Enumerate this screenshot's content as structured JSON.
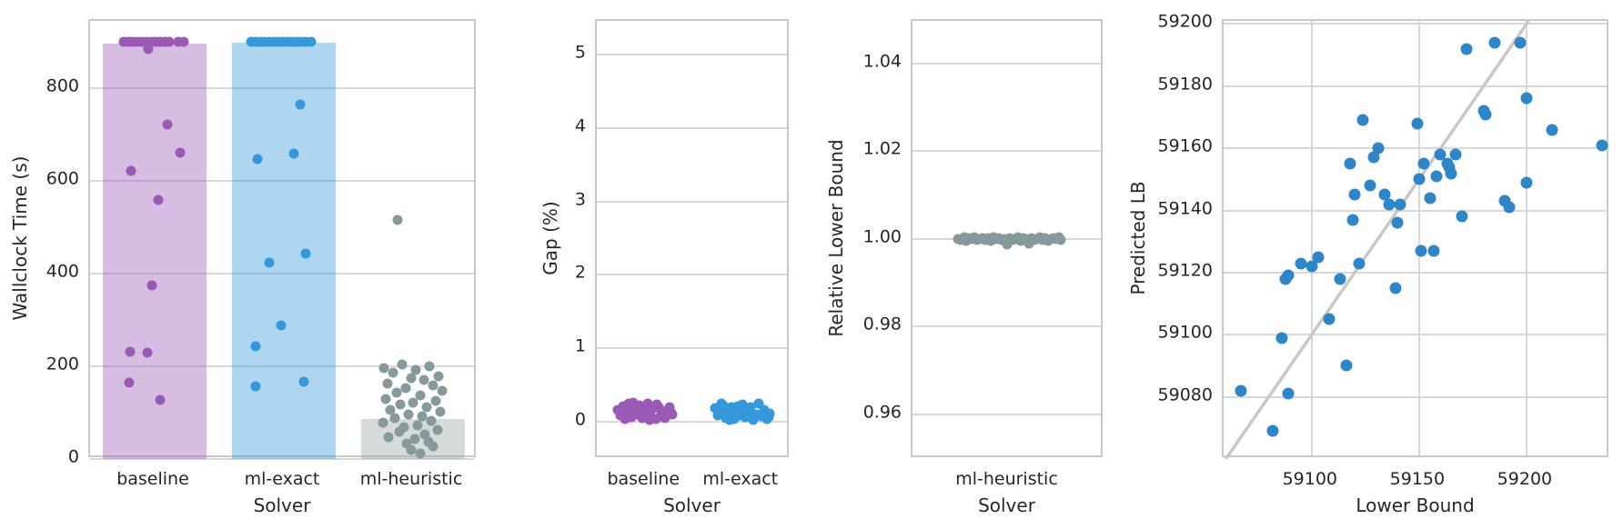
{
  "figure": {
    "background": "#ffffff"
  },
  "chart_data": [
    {
      "type": "strip-bar",
      "xlabel": "Solver",
      "ylabel": "Wallclock Time (s)",
      "categories": [
        "baseline",
        "ml-exact",
        "ml-heuristic"
      ],
      "bar_values": [
        896,
        897,
        86
      ],
      "ylim": [
        0,
        945
      ],
      "ytick_values": [
        0,
        200,
        400,
        600,
        800
      ],
      "ytick_labels": [
        "0",
        "200",
        "400",
        "600",
        "800"
      ],
      "series_colors": [
        "#9b59b6",
        "#3498db",
        "#879a9b"
      ],
      "bar_fills": [
        "rgba(155,89,182,0.40)",
        "rgba(52,152,219,0.40)",
        "rgba(149,165,166,0.40)"
      ],
      "grid": true,
      "points_by_category": [
        [
          [
            -34,
            900
          ],
          [
            -29,
            900
          ],
          [
            -24,
            900
          ],
          [
            -19,
            900
          ],
          [
            -14,
            900
          ],
          [
            -9,
            900
          ],
          [
            -4,
            900
          ],
          [
            1,
            900
          ],
          [
            6,
            900
          ],
          [
            11,
            900
          ],
          [
            16,
            900
          ],
          [
            26,
            900
          ],
          [
            32,
            900
          ],
          [
            -7,
            885
          ],
          [
            14,
            722
          ],
          [
            28,
            660
          ],
          [
            -26,
            622
          ],
          [
            4,
            558
          ],
          [
            -3,
            375
          ],
          [
            -27,
            231
          ],
          [
            -8,
            229
          ],
          [
            -28,
            164
          ],
          [
            6,
            127
          ]
        ],
        [
          [
            -36,
            900
          ],
          [
            -31,
            900
          ],
          [
            -26,
            900
          ],
          [
            -21,
            900
          ],
          [
            -16,
            900
          ],
          [
            -11,
            900
          ],
          [
            -6,
            900
          ],
          [
            -1,
            900
          ],
          [
            4,
            900
          ],
          [
            9,
            900
          ],
          [
            14,
            900
          ],
          [
            19,
            900
          ],
          [
            24,
            900
          ],
          [
            30,
            900
          ],
          [
            18,
            765
          ],
          [
            11,
            658
          ],
          [
            -29,
            647
          ],
          [
            24,
            443
          ],
          [
            -16,
            424
          ],
          [
            -3,
            289
          ],
          [
            -31,
            244
          ],
          [
            22,
            166
          ],
          [
            -31,
            157
          ]
        ],
        [
          [
            -17,
            516
          ],
          [
            -32,
            196
          ],
          [
            -12,
            203
          ],
          [
            3,
            192
          ],
          [
            18,
            199
          ],
          [
            -22,
            186
          ],
          [
            28,
            178
          ],
          [
            -2,
            175
          ],
          [
            12,
            170
          ],
          [
            -28,
            162
          ],
          [
            22,
            158
          ],
          [
            -8,
            152
          ],
          [
            32,
            148
          ],
          [
            -18,
            143
          ],
          [
            8,
            138
          ],
          [
            -30,
            130
          ],
          [
            25,
            126
          ],
          [
            0,
            122
          ],
          [
            -14,
            117
          ],
          [
            15,
            112
          ],
          [
            -25,
            106
          ],
          [
            30,
            101
          ],
          [
            -5,
            97
          ],
          [
            10,
            92
          ],
          [
            -20,
            88
          ],
          [
            20,
            83
          ],
          [
            -33,
            78
          ],
          [
            5,
            73
          ],
          [
            -10,
            68
          ],
          [
            27,
            63
          ],
          [
            -15,
            58
          ],
          [
            13,
            53
          ],
          [
            -27,
            48
          ],
          [
            2,
            43
          ],
          [
            17,
            38
          ],
          [
            -7,
            33
          ],
          [
            22,
            27
          ],
          [
            -2,
            20
          ],
          [
            8,
            12
          ]
        ]
      ]
    },
    {
      "type": "strip",
      "xlabel": "Solver",
      "ylabel": "Gap (%)",
      "categories": [
        "baseline",
        "ml-exact"
      ],
      "ylim": [
        -0.51,
        5.46
      ],
      "ytick_values": [
        0,
        1,
        2,
        3,
        4,
        5
      ],
      "ytick_labels": [
        "0",
        "1",
        "2",
        "3",
        "4",
        "5"
      ],
      "series_colors": [
        "#9b59b6",
        "#3498db"
      ],
      "grid": true,
      "points_by_category": [
        [
          [
            -30,
            0.16
          ],
          [
            -27,
            0.09
          ],
          [
            -24,
            0.21
          ],
          [
            -21,
            0.13
          ],
          [
            -18,
            0.24
          ],
          [
            -15,
            0.06
          ],
          [
            -12,
            0.17
          ],
          [
            -9,
            0.1
          ],
          [
            -6,
            0.22
          ],
          [
            -3,
            0.05
          ],
          [
            0,
            0.14
          ],
          [
            3,
            0.25
          ],
          [
            6,
            0.08
          ],
          [
            9,
            0.18
          ],
          [
            12,
            0.04
          ],
          [
            15,
            0.2
          ],
          [
            18,
            0.11
          ],
          [
            21,
            0.07
          ],
          [
            24,
            0.15
          ],
          [
            27,
            0.19
          ],
          [
            30,
            0.1
          ],
          [
            -22,
            0.03
          ],
          [
            -13,
            0.26
          ],
          [
            -4,
            0.12
          ],
          [
            5,
            0.02
          ],
          [
            13,
            0.23
          ],
          [
            22,
            0.05
          ],
          [
            28,
            0.13
          ]
        ],
        [
          [
            -30,
            0.18
          ],
          [
            -27,
            0.08
          ],
          [
            -24,
            0.14
          ],
          [
            -21,
            0.22
          ],
          [
            -18,
            0.05
          ],
          [
            -15,
            0.12
          ],
          [
            -12,
            0.2
          ],
          [
            -9,
            0.03
          ],
          [
            -6,
            0.16
          ],
          [
            -3,
            0.09
          ],
          [
            0,
            0.23
          ],
          [
            3,
            0.06
          ],
          [
            6,
            0.13
          ],
          [
            9,
            0.19
          ],
          [
            12,
            0.02
          ],
          [
            15,
            0.1
          ],
          [
            18,
            0.24
          ],
          [
            21,
            0.07
          ],
          [
            24,
            0.16
          ],
          [
            27,
            0.04
          ],
          [
            30,
            0.11
          ],
          [
            -23,
            0.25
          ],
          [
            -14,
            0.02
          ],
          [
            -5,
            0.21
          ],
          [
            4,
            0.15
          ],
          [
            14,
            0.08
          ],
          [
            23,
            0.12
          ],
          [
            29,
            0.06
          ]
        ]
      ]
    },
    {
      "type": "strip",
      "xlabel": "Solver",
      "ylabel": "Relative Lower Bound",
      "categories": [
        "ml-heuristic"
      ],
      "ylim": [
        0.9498,
        1.0497
      ],
      "ytick_values": [
        0.96,
        0.98,
        1.0,
        1.02,
        1.04
      ],
      "ytick_labels": [
        "0.96",
        "0.98",
        "1.00",
        "1.02",
        "1.04"
      ],
      "series_colors": [
        "#879a9b"
      ],
      "grid": true,
      "points_by_category": [
        [
          [
            -56,
            1.0
          ],
          [
            -53,
            0.9998
          ],
          [
            -50,
            1.0002
          ],
          [
            -47,
            0.9996
          ],
          [
            -44,
            1.0001
          ],
          [
            -41,
            0.9999
          ],
          [
            -38,
            1.0003
          ],
          [
            -35,
            0.9997
          ],
          [
            -32,
            1.0
          ],
          [
            -29,
            1.0002
          ],
          [
            -26,
            0.9998
          ],
          [
            -23,
            1.0001
          ],
          [
            -20,
            0.9995
          ],
          [
            -17,
            1.0003
          ],
          [
            -14,
            0.9999
          ],
          [
            -11,
            1.0001
          ],
          [
            -8,
            0.9997
          ],
          [
            -5,
            1.0
          ],
          [
            -2,
            0.9987
          ],
          [
            1,
            1.0002
          ],
          [
            4,
            0.9998
          ],
          [
            7,
            1.0
          ],
          [
            10,
            1.0003
          ],
          [
            13,
            0.9996
          ],
          [
            16,
            1.0001
          ],
          [
            19,
            0.9999
          ],
          [
            22,
            0.999
          ],
          [
            25,
            1.0002
          ],
          [
            28,
            0.9997
          ],
          [
            31,
            1.0
          ],
          [
            34,
            1.0003
          ],
          [
            37,
            0.9998
          ],
          [
            40,
            1.0001
          ],
          [
            43,
            0.9995
          ],
          [
            46,
            1.0
          ],
          [
            49,
            1.0002
          ],
          [
            52,
            0.9999
          ],
          [
            55,
            1.0003
          ],
          [
            57,
            0.9997
          ],
          [
            -49,
            1.0004
          ]
        ]
      ]
    },
    {
      "type": "scatter",
      "xlabel": "Lower Bound",
      "ylabel": "Predicted LB",
      "xlim": [
        59059,
        59239
      ],
      "ylim": [
        59060,
        59201
      ],
      "xtick_values": [
        59100,
        59150,
        59200
      ],
      "xtick_labels": [
        "59100",
        "59150",
        "59200"
      ],
      "ytick_values": [
        59080,
        59100,
        59120,
        59140,
        59160,
        59180,
        59200
      ],
      "ytick_labels": [
        "59080",
        "59100",
        "59120",
        "59140",
        "59160",
        "59180",
        "59200"
      ],
      "point_color": "#2e86c9",
      "identity_line": true,
      "line_color": "#c8c8c8",
      "grid": true,
      "points": [
        [
          59067,
          59082
        ],
        [
          59082,
          59069
        ],
        [
          59086,
          59099
        ],
        [
          59089,
          59081
        ],
        [
          59088,
          59118
        ],
        [
          59089,
          59119
        ],
        [
          59095,
          59123
        ],
        [
          59100,
          59122
        ],
        [
          59103,
          59125
        ],
        [
          59108,
          59105
        ],
        [
          59113,
          59118
        ],
        [
          59116,
          59090
        ],
        [
          59118,
          59155
        ],
        [
          59119,
          59137
        ],
        [
          59120,
          59145
        ],
        [
          59122,
          59123
        ],
        [
          59124,
          59169
        ],
        [
          59127,
          59148
        ],
        [
          59129,
          59157
        ],
        [
          59131,
          59160
        ],
        [
          59134,
          59145
        ],
        [
          59136,
          59142
        ],
        [
          59139,
          59115
        ],
        [
          59141,
          59142
        ],
        [
          59140,
          59136
        ],
        [
          59149,
          59168
        ],
        [
          59150,
          59150
        ],
        [
          59151,
          59127
        ],
        [
          59152,
          59155
        ],
        [
          59155,
          59144
        ],
        [
          59157,
          59127
        ],
        [
          59158,
          59151
        ],
        [
          59160,
          59158
        ],
        [
          59163,
          59155
        ],
        [
          59164,
          59154
        ],
        [
          59165,
          59152
        ],
        [
          59167,
          59158
        ],
        [
          59170,
          59138
        ],
        [
          59172,
          59192
        ],
        [
          59180,
          59172
        ],
        [
          59181,
          59171
        ],
        [
          59185,
          59194
        ],
        [
          59190,
          59143
        ],
        [
          59192,
          59141
        ],
        [
          59197,
          59194
        ],
        [
          59200,
          59176
        ],
        [
          59200,
          59149
        ],
        [
          59212,
          59166
        ],
        [
          59235,
          59161
        ]
      ]
    }
  ]
}
